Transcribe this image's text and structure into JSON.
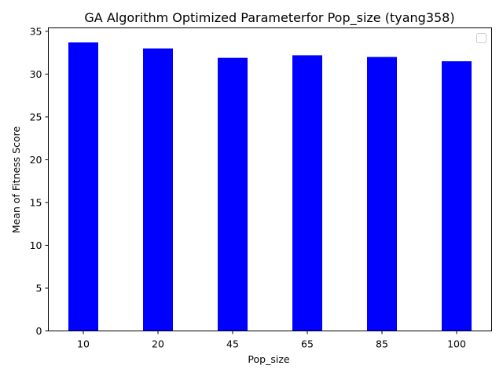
{
  "chart_data": {
    "type": "bar",
    "title": "GA Algorithm Optimized Parameterfor Pop_size (tyang358)",
    "xlabel": "Pop_size",
    "ylabel": "Mean of Fitness Score",
    "categories": [
      "10",
      "20",
      "45",
      "65",
      "85",
      "100"
    ],
    "values": [
      33.7,
      33.0,
      31.9,
      32.2,
      32.0,
      31.5
    ],
    "ylim": [
      0,
      35.4
    ],
    "yticks": [
      0,
      5,
      10,
      15,
      20,
      25,
      30,
      35
    ],
    "bar_color": "#0000ff",
    "grid": false,
    "legend": {
      "placement": "top-right",
      "entries": []
    }
  }
}
